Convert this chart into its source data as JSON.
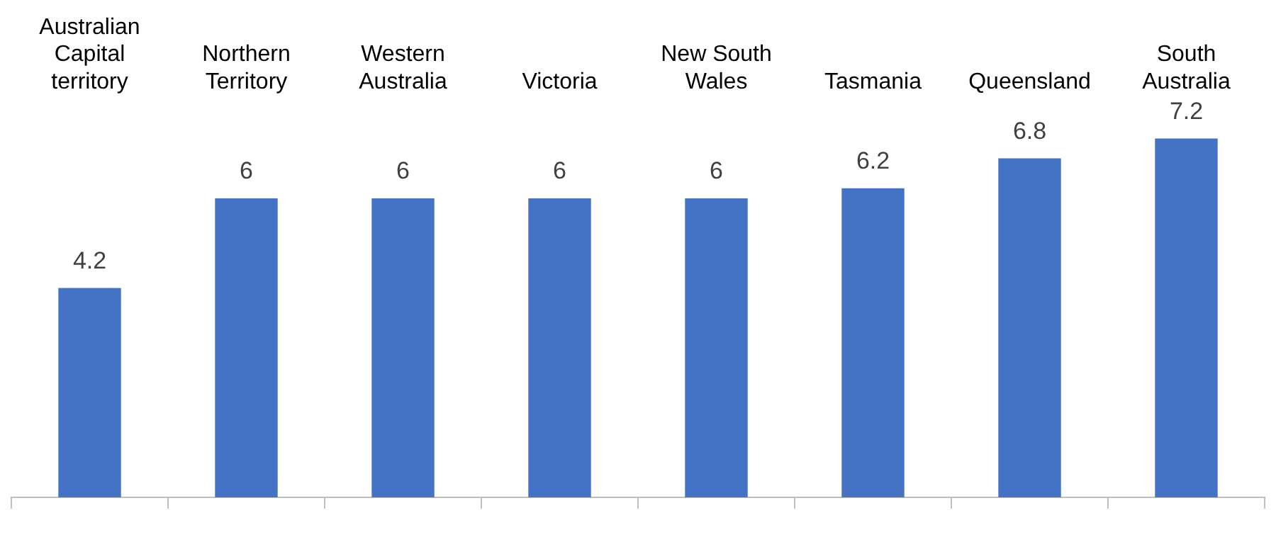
{
  "chart_data": {
    "type": "bar",
    "categories": [
      "Australian Capital territory",
      "Northern Territory",
      "Western Australia",
      "Victoria",
      "New South Wales",
      "Tasmania",
      "Queensland",
      "South Australia"
    ],
    "values": [
      4.2,
      6,
      6,
      6,
      6,
      6.2,
      6.8,
      7.2
    ],
    "color": "#4472c4",
    "data_labels": true,
    "grid": false,
    "legend": false
  }
}
